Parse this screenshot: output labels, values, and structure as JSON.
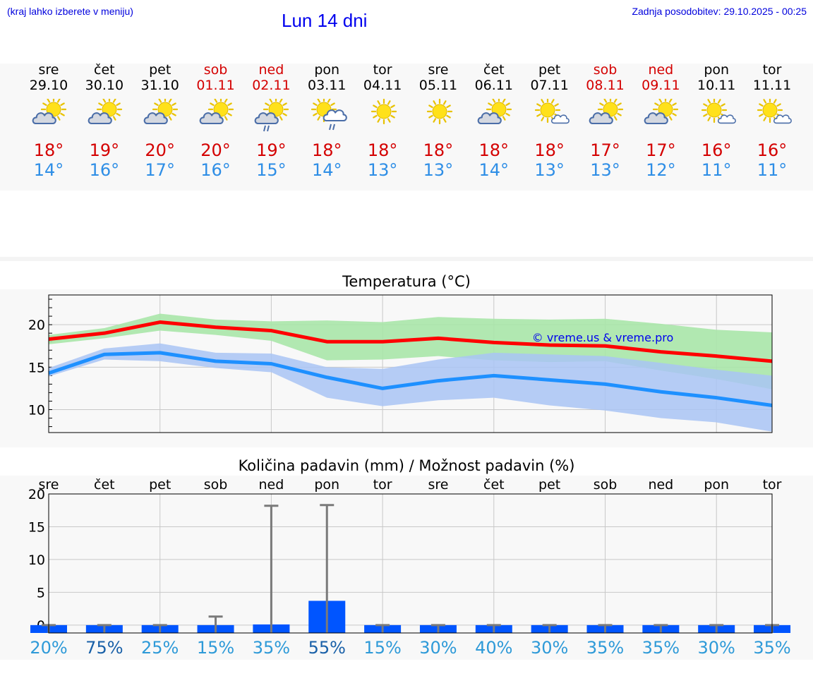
{
  "header": {
    "hint": "(kraj lahko izberete v meniju)",
    "title": "Lun 14 dni",
    "updated": "Zadnja posodobitev: 29.10.2025 - 00:25"
  },
  "days": [
    {
      "name": "sre",
      "date": "29.10",
      "weekend": false,
      "icon": "sun-cloud-icon",
      "tmax": "18°",
      "tmin": "14°"
    },
    {
      "name": "čet",
      "date": "30.10",
      "weekend": false,
      "icon": "sun-cloud-icon",
      "tmax": "19°",
      "tmin": "16°"
    },
    {
      "name": "pet",
      "date": "31.10",
      "weekend": false,
      "icon": "sun-cloud-icon",
      "tmax": "20°",
      "tmin": "17°"
    },
    {
      "name": "sob",
      "date": "01.11",
      "weekend": true,
      "icon": "sun-cloud-icon",
      "tmax": "20°",
      "tmin": "16°"
    },
    {
      "name": "ned",
      "date": "02.11",
      "weekend": true,
      "icon": "sun-cloud-rain-icon",
      "tmax": "19°",
      "tmin": "15°"
    },
    {
      "name": "pon",
      "date": "03.11",
      "weekend": false,
      "icon": "sun-cloud-rain-right-icon",
      "tmax": "18°",
      "tmin": "14°"
    },
    {
      "name": "tor",
      "date": "04.11",
      "weekend": false,
      "icon": "sun-icon",
      "tmax": "18°",
      "tmin": "13°"
    },
    {
      "name": "sre",
      "date": "05.11",
      "weekend": false,
      "icon": "sun-icon",
      "tmax": "18°",
      "tmin": "13°"
    },
    {
      "name": "čet",
      "date": "06.11",
      "weekend": false,
      "icon": "sun-cloud-icon",
      "tmax": "18°",
      "tmin": "14°"
    },
    {
      "name": "pet",
      "date": "07.11",
      "weekend": false,
      "icon": "sun-small-cloud-icon",
      "tmax": "18°",
      "tmin": "13°"
    },
    {
      "name": "sob",
      "date": "08.11",
      "weekend": true,
      "icon": "sun-cloud-icon",
      "tmax": "17°",
      "tmin": "13°"
    },
    {
      "name": "ned",
      "date": "09.11",
      "weekend": true,
      "icon": "sun-cloud-icon",
      "tmax": "17°",
      "tmin": "12°"
    },
    {
      "name": "pon",
      "date": "10.11",
      "weekend": false,
      "icon": "sun-small-cloud-icon",
      "tmax": "16°",
      "tmin": "11°"
    },
    {
      "name": "tor",
      "date": "11.11",
      "weekend": false,
      "icon": "sun-small-cloud-icon",
      "tmax": "16°",
      "tmin": "11°"
    }
  ],
  "colors": {
    "max": "#ff0000",
    "min": "#1e90ff",
    "max_band": "#a8e6a8",
    "min_band": "#a9c4f5",
    "bar": "#0055ff",
    "weekend": "#d40000"
  },
  "chart_data": [
    {
      "type": "line",
      "title": "Temperatura (°C)",
      "x": [
        1,
        2,
        3,
        4,
        5,
        6,
        7,
        8,
        9,
        10,
        11,
        12,
        13,
        14
      ],
      "ylim": [
        7.3,
        23.5
      ],
      "yticks": [
        10,
        15,
        20
      ],
      "watermark": "© vreme.us & vreme.pro",
      "series": [
        {
          "name": "max",
          "values": [
            18.3,
            19.0,
            20.3,
            19.7,
            19.3,
            18.0,
            18.0,
            18.4,
            17.9,
            17.6,
            17.5,
            16.8,
            16.3,
            15.7
          ]
        },
        {
          "name": "min",
          "values": [
            14.3,
            16.5,
            16.7,
            15.7,
            15.4,
            13.8,
            12.5,
            13.4,
            14.0,
            13.5,
            13.0,
            12.1,
            11.4,
            10.5
          ]
        }
      ],
      "bands": [
        {
          "name": "max_range",
          "upper": [
            18.8,
            19.6,
            21.3,
            20.6,
            20.4,
            20.5,
            20.3,
            20.9,
            20.7,
            20.6,
            20.7,
            20.1,
            19.4,
            19.1
          ],
          "lower": [
            17.7,
            18.4,
            19.3,
            18.8,
            18.1,
            15.8,
            15.9,
            16.3,
            15.8,
            15.6,
            15.7,
            14.6,
            13.6,
            12.4
          ]
        },
        {
          "name": "min_range",
          "upper": [
            14.9,
            17.2,
            17.8,
            16.7,
            16.6,
            15.0,
            14.8,
            15.9,
            16.7,
            16.5,
            16.3,
            15.5,
            14.7,
            14.0
          ],
          "lower": [
            13.9,
            15.9,
            15.7,
            14.9,
            14.4,
            11.4,
            10.4,
            11.1,
            11.4,
            10.5,
            9.9,
            9.0,
            8.5,
            7.4
          ]
        }
      ]
    },
    {
      "type": "bar",
      "title": "Količina padavin (mm) / Možnost padavin (%)",
      "categories": [
        "sre",
        "čet",
        "pet",
        "sob",
        "ned",
        "pon",
        "tor",
        "sre",
        "čet",
        "pet",
        "sob",
        "ned",
        "pon",
        "tor"
      ],
      "values": [
        0,
        0,
        0,
        0,
        0.1,
        3.7,
        0,
        0,
        0,
        0,
        0,
        0,
        0,
        0
      ],
      "error_upper": [
        0,
        0,
        0,
        1.3,
        18.2,
        18.3,
        0,
        0,
        0,
        0,
        0,
        0,
        0,
        0
      ],
      "ylim": [
        -1.2,
        20
      ],
      "yticks": [
        0,
        5,
        10,
        15,
        20
      ],
      "chance": [
        "20%",
        "75%",
        "25%",
        "15%",
        "35%",
        "55%",
        "15%",
        "30%",
        "40%",
        "30%",
        "35%",
        "35%",
        "30%",
        "35%"
      ],
      "chance_high": [
        false,
        true,
        false,
        false,
        false,
        true,
        false,
        false,
        false,
        false,
        false,
        false,
        false,
        false
      ]
    }
  ]
}
